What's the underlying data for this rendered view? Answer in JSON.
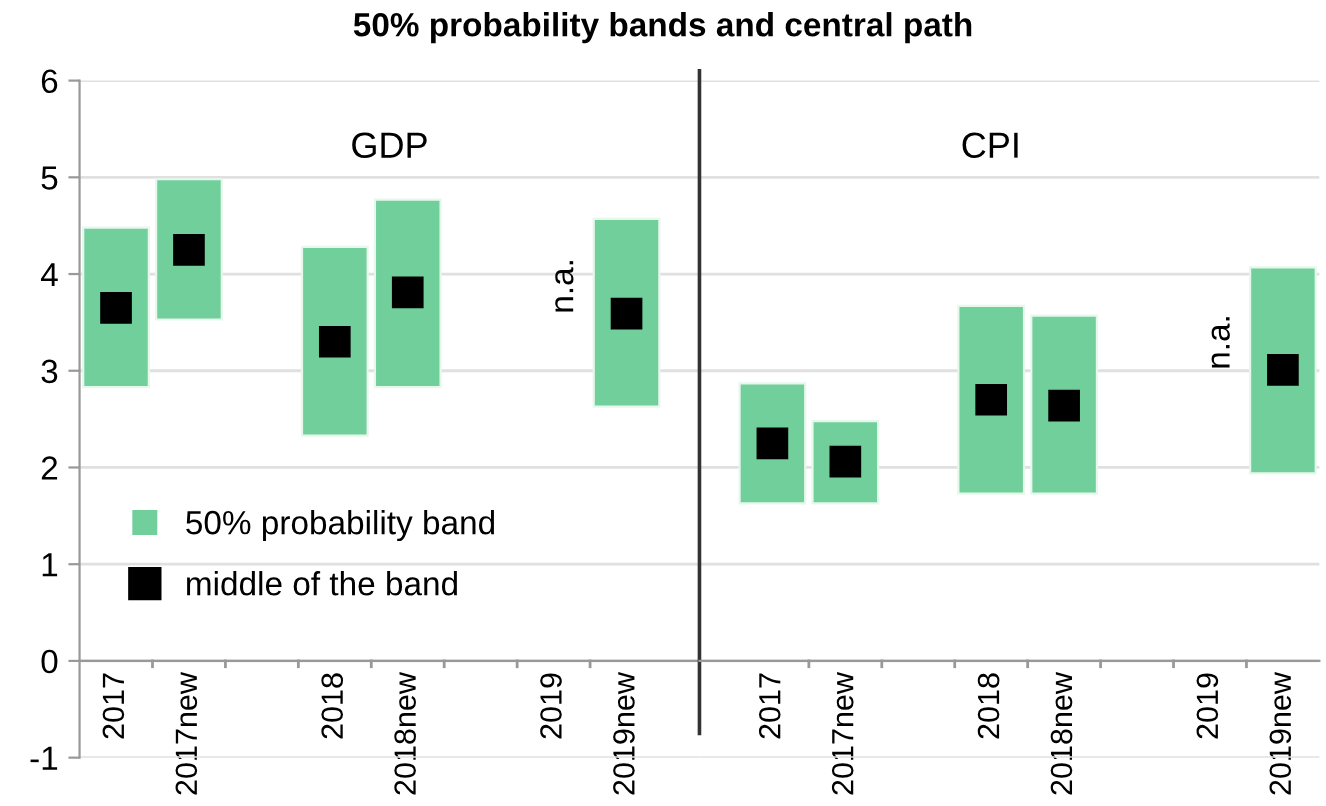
{
  "chart_data": [
    {
      "type": "bar",
      "title": "50% probability bands and central path",
      "subtitle": "GDP",
      "categories": [
        "2017",
        "2017new",
        null,
        "2018",
        "2018new",
        null,
        "2019",
        "2019new"
      ],
      "series": [
        {
          "name": "50% probability band",
          "color": "#70cf9b",
          "base": [
            2.83,
            3.53,
            null,
            2.33,
            2.83,
            null,
            null,
            2.63
          ],
          "values": [
            1.65,
            1.45,
            null,
            1.95,
            1.94,
            null,
            null,
            1.94
          ]
        },
        {
          "type": "scatter",
          "name": "middle of the band",
          "color": "#000000",
          "marker": "square",
          "values": [
            3.65,
            4.25,
            null,
            3.3,
            3.81,
            null,
            null,
            3.59
          ]
        }
      ],
      "annotations": [
        "n.a."
      ],
      "ylim": [
        -1,
        6
      ],
      "yticks": [
        -1,
        0,
        1,
        2,
        3,
        4,
        5,
        6
      ],
      "grid": "y",
      "legend": "bottom left"
    },
    {
      "type": "bar",
      "subtitle": "CPI",
      "categories": [
        "2017",
        "2017new",
        null,
        "2018",
        "2018new",
        null,
        "2019",
        "2019new"
      ],
      "series": [
        {
          "color": "#70cf9b",
          "base": [
            1.63,
            1.63,
            null,
            1.73,
            1.73,
            null,
            null,
            1.94
          ],
          "values": [
            1.24,
            0.85,
            null,
            1.94,
            1.84,
            null,
            null,
            2.13
          ]
        },
        {
          "type": "scatter",
          "color": "#000000",
          "marker": "square",
          "values": [
            2.25,
            2.06,
            null,
            2.7,
            2.64,
            null,
            null,
            3.01
          ]
        }
      ],
      "annotations": [
        "n.a."
      ],
      "ylim": [
        -1,
        6
      ],
      "yticks": [
        -1,
        0,
        1,
        2,
        3,
        4,
        5,
        6
      ],
      "grid": "y",
      "legend": false,
      "tick_labels": "x"
    }
  ]
}
